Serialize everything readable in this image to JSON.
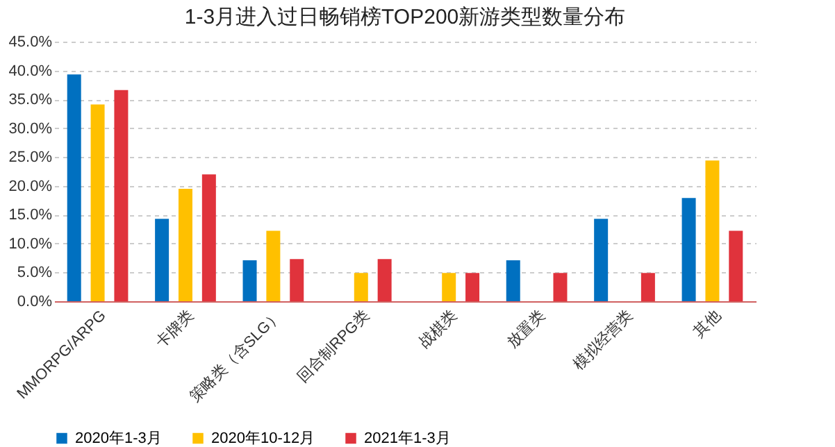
{
  "chart_data": {
    "type": "bar",
    "title": "1-3月进入过日畅销榜TOP200新游类型数量分布",
    "categories": [
      "MMORPG/ARPG",
      "卡牌类",
      "策略类（含SLG）",
      "回合制RPG类",
      "战棋类",
      "放置类",
      "模拟经营类",
      "其他"
    ],
    "series": [
      {
        "name": "2020年1-3月",
        "color": "#0070c0",
        "values": [
          39.3,
          14.3,
          7.1,
          0,
          0,
          7.1,
          14.3,
          17.9
        ]
      },
      {
        "name": "2020年10-12月",
        "color": "#ffc000",
        "values": [
          34.1,
          19.5,
          12.2,
          4.9,
          4.9,
          0,
          0,
          24.4
        ]
      },
      {
        "name": "2021年1-3月",
        "color": "#e0333c",
        "values": [
          36.6,
          22.0,
          7.3,
          7.3,
          4.9,
          4.9,
          4.9,
          12.2
        ]
      }
    ],
    "ylim": [
      0,
      45
    ],
    "yticks": [
      {
        "value": 0,
        "label": "0.0%"
      },
      {
        "value": 5,
        "label": "5.0%"
      },
      {
        "value": 10,
        "label": "10.0%"
      },
      {
        "value": 15,
        "label": "15.0%"
      },
      {
        "value": 20,
        "label": "20.0%"
      },
      {
        "value": 25,
        "label": "25.0%"
      },
      {
        "value": 30,
        "label": "30.0%"
      },
      {
        "value": 35,
        "label": "35.0%"
      },
      {
        "value": 40,
        "label": "40.0%"
      },
      {
        "value": 45,
        "label": "45.0%"
      }
    ],
    "grid": "y",
    "legend": "bottom"
  }
}
